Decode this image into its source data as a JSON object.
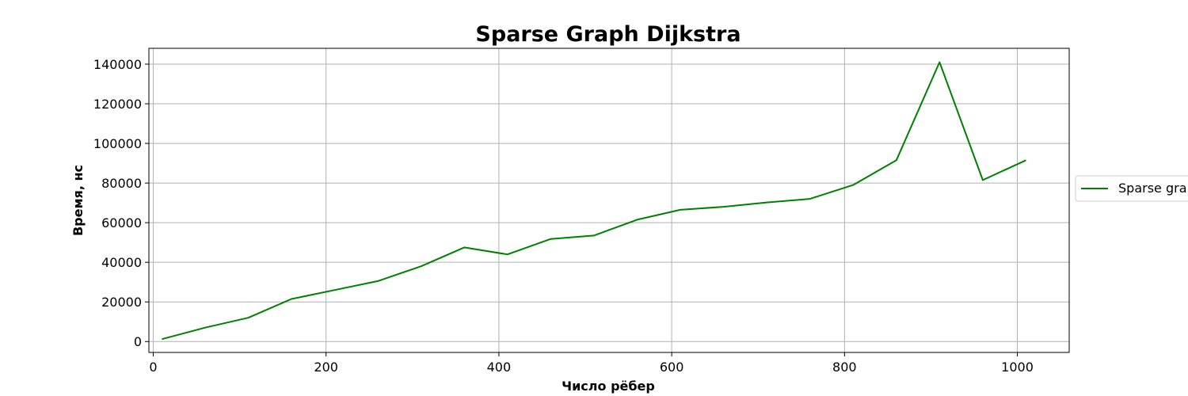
{
  "chart_data": {
    "type": "line",
    "title": "Sparse Graph Dijkstra",
    "xlabel": "Число рёбер",
    "ylabel": "Время, нс",
    "xlim": [
      -5,
      1060
    ],
    "ylim": [
      -5500,
      148000
    ],
    "xticks": [
      0,
      200,
      400,
      600,
      800,
      1000
    ],
    "yticks": [
      0,
      20000,
      40000,
      60000,
      80000,
      100000,
      120000,
      140000
    ],
    "grid": true,
    "legend_position": "outside-right",
    "series": [
      {
        "name": "Sparse gra",
        "color": "#008000",
        "x": [
          10,
          60,
          110,
          160,
          210,
          260,
          310,
          360,
          410,
          460,
          510,
          560,
          610,
          660,
          710,
          760,
          810,
          860,
          910,
          960,
          1010
        ],
        "y": [
          1200,
          7000,
          12000,
          21500,
          26000,
          30500,
          38000,
          47500,
          44000,
          51800,
          53500,
          61500,
          66500,
          68000,
          70200,
          72000,
          79000,
          91500,
          141000,
          81500,
          91500
        ]
      }
    ]
  }
}
